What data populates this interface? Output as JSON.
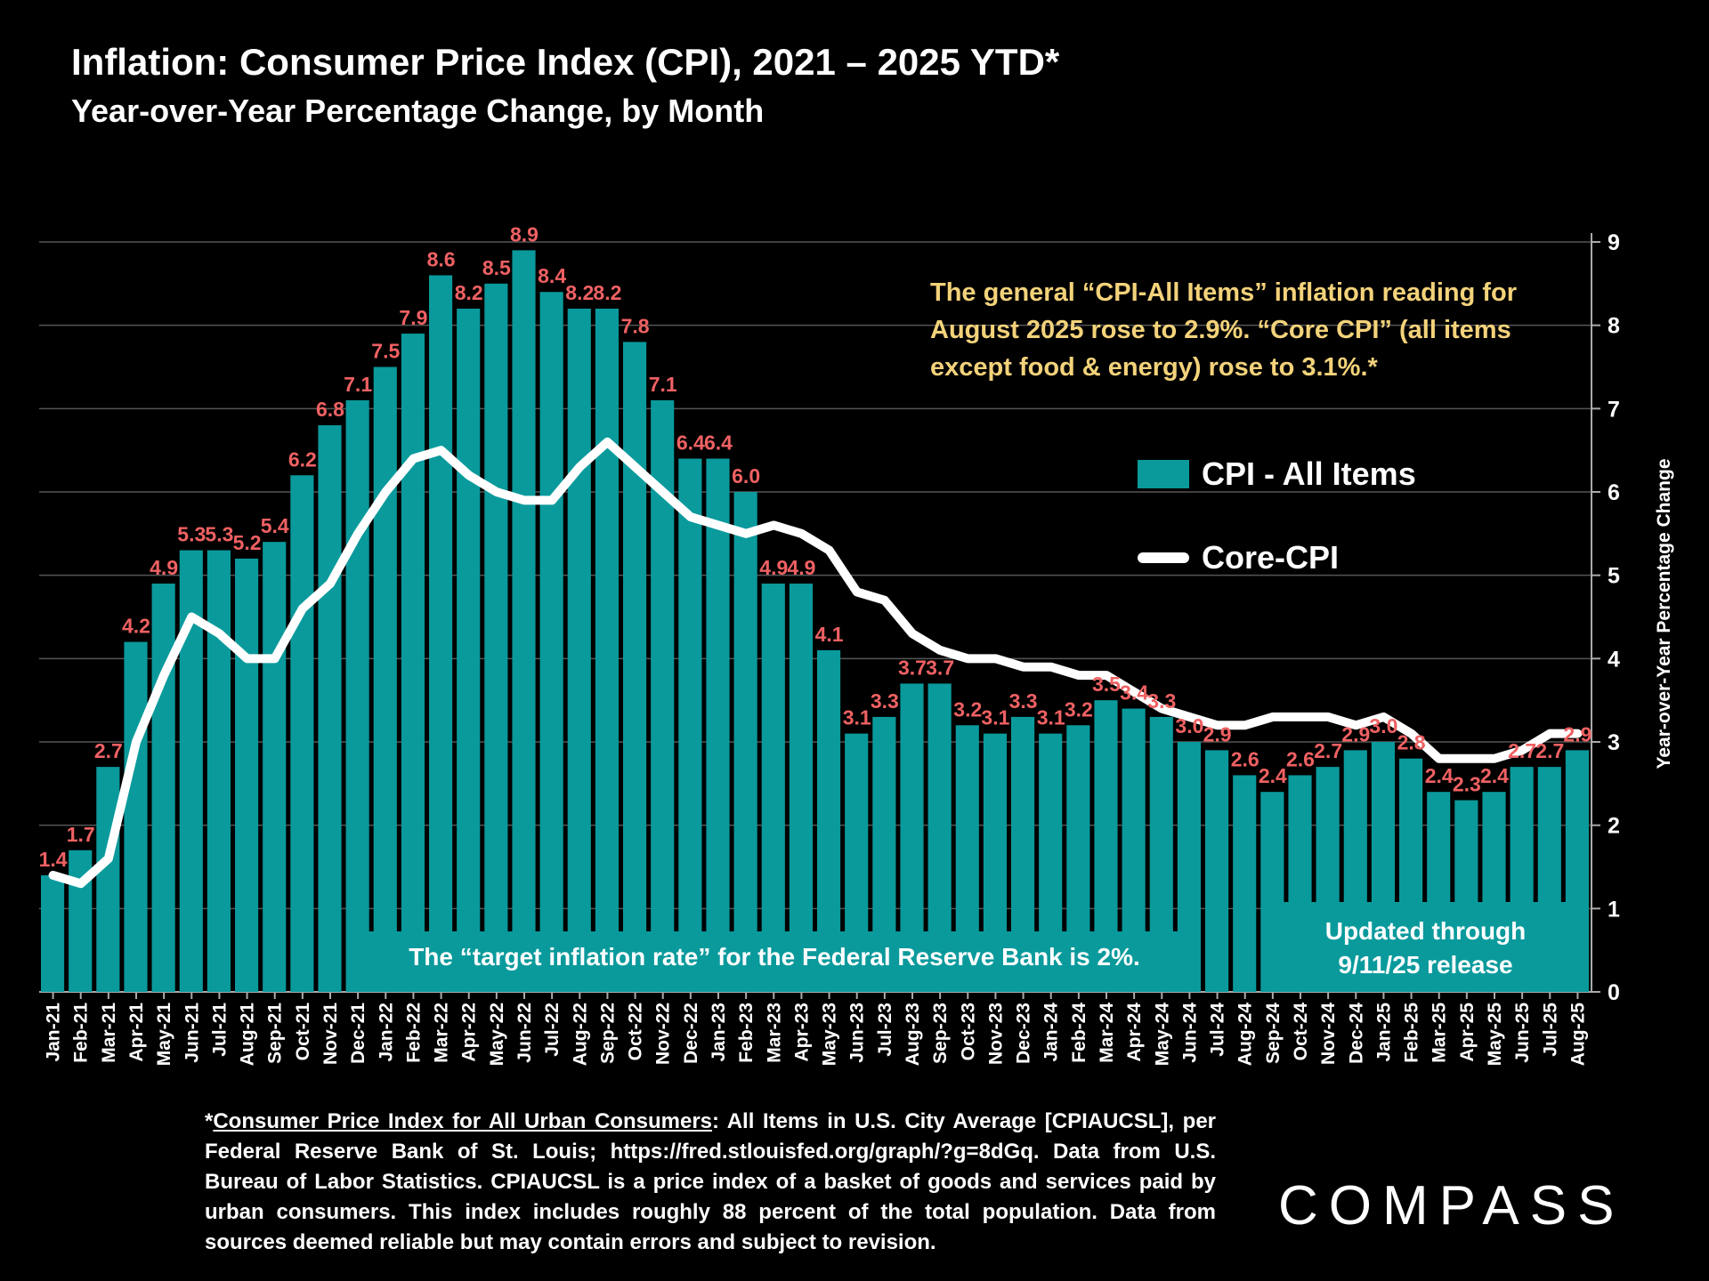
{
  "header": {
    "title": "Inflation: Consumer Price Index (CPI), 2021 – 2025 YTD*",
    "subtitle": "Year-over-Year Percentage Change, by Month"
  },
  "annotation": "The general “CPI-All Items” inflation reading for August 2025 rose to 2.9%. “Core CPI” (all items except food & energy) rose to 3.1%.*",
  "target_note": "The “target inflation rate” for the Federal Reserve Bank is 2%.",
  "updated_note": {
    "line1": "Updated through",
    "line2": "9/11/25 release"
  },
  "footer": {
    "link_text": "Consumer Price Index for All Urban Consumers",
    "prefix": "*",
    "rest": ": All Items in U.S. City Average [CPIAUCSL], per Federal Reserve Bank of St. Louis; https://fred.stlouisfed.org/graph/?g=8dGq. Data from U.S. Bureau of Labor Statistics. CPIAUCSL is a price index of a basket of goods and services paid by urban consumers. This index includes roughly 88 percent of the total population. Data from sources deemed reliable but may contain errors and subject to revision."
  },
  "logo": "COMPASS",
  "chart_data": {
    "type": "bar+line",
    "title": "Inflation: Consumer Price Index (CPI), 2021 – 2025 YTD*",
    "ylabel": "Year-over-Year Percentage Change",
    "ylim": [
      0,
      9
    ],
    "yticks": [
      0,
      1,
      2,
      3,
      4,
      5,
      6,
      7,
      8,
      9
    ],
    "y_axis_side": "right",
    "grid": true,
    "legend_placement": "right",
    "colors": {
      "bars": "#0a9a9c",
      "line": "#ffffff",
      "data_labels": "#ef6163",
      "annotation": "#f3d27a",
      "grid": "#555555"
    },
    "categories": [
      "Jan-21",
      "Feb-21",
      "Mar-21",
      "Apr-21",
      "May-21",
      "Jun-21",
      "Jul-21",
      "Aug-21",
      "Sep-21",
      "Oct-21",
      "Nov-21",
      "Dec-21",
      "Jan-22",
      "Feb-22",
      "Mar-22",
      "Apr-22",
      "May-22",
      "Jun-22",
      "Jul-22",
      "Aug-22",
      "Sep-22",
      "Oct-22",
      "Nov-22",
      "Dec-22",
      "Jan-23",
      "Feb-23",
      "Mar-23",
      "Apr-23",
      "May-23",
      "Jun-23",
      "Jul-23",
      "Aug-23",
      "Sep-23",
      "Oct-23",
      "Nov-23",
      "Dec-23",
      "Jan-24",
      "Feb-24",
      "Mar-24",
      "Apr-24",
      "May-24",
      "Jun-24",
      "Jul-24",
      "Aug-24",
      "Sep-24",
      "Oct-24",
      "Nov-24",
      "Dec-24",
      "Jan-25",
      "Feb-25",
      "Mar-25",
      "Apr-25",
      "May-25",
      "Jun-25",
      "Jul-25",
      "Aug-25"
    ],
    "series": [
      {
        "name": "CPI - All Items",
        "type": "bar",
        "values": [
          1.4,
          1.7,
          2.7,
          4.2,
          4.9,
          5.3,
          5.3,
          5.2,
          5.4,
          6.2,
          6.8,
          7.1,
          7.5,
          7.9,
          8.6,
          8.2,
          8.5,
          8.9,
          8.4,
          8.2,
          8.2,
          7.8,
          7.1,
          6.4,
          6.4,
          6.0,
          4.9,
          4.9,
          4.1,
          3.1,
          3.3,
          3.7,
          3.7,
          3.2,
          3.1,
          3.3,
          3.1,
          3.2,
          3.5,
          3.4,
          3.3,
          3.0,
          2.9,
          2.6,
          2.4,
          2.6,
          2.7,
          2.9,
          3.0,
          2.8,
          2.4,
          2.3,
          2.4,
          2.7,
          2.7,
          2.9
        ]
      },
      {
        "name": "Core-CPI",
        "type": "line",
        "values": [
          1.4,
          1.3,
          1.6,
          3.0,
          3.8,
          4.5,
          4.3,
          4.0,
          4.0,
          4.6,
          4.9,
          5.5,
          6.0,
          6.4,
          6.5,
          6.2,
          6.0,
          5.9,
          5.9,
          6.3,
          6.6,
          6.3,
          6.0,
          5.7,
          5.6,
          5.5,
          5.6,
          5.5,
          5.3,
          4.8,
          4.7,
          4.3,
          4.1,
          4.0,
          4.0,
          3.9,
          3.9,
          3.8,
          3.8,
          3.6,
          3.4,
          3.3,
          3.2,
          3.2,
          3.3,
          3.3,
          3.3,
          3.2,
          3.3,
          3.1,
          2.8,
          2.8,
          2.8,
          2.9,
          3.1,
          3.1
        ]
      }
    ]
  }
}
